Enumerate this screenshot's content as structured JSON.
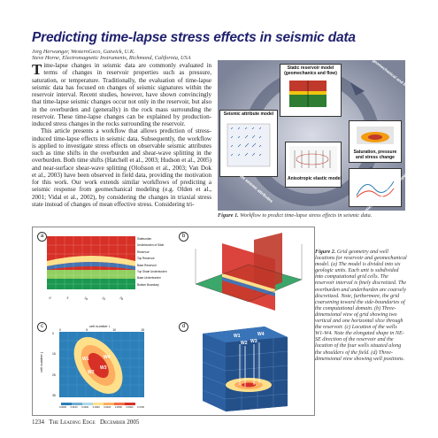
{
  "title": "Predicting time-lapse stress effects in seismic data",
  "authors": [
    {
      "line": "Jorg Herwanger, WesternGeco, Gatwick, U.K."
    },
    {
      "line": "Steve Horne, Electromagnetic Instruments, Richmond, California, USA"
    }
  ],
  "body": {
    "dropcap": "T",
    "para1": "ime-lapse changes in seismic data are commonly evaluated in terms of changes in reservoir properties such as pressure, saturation, or temperature. Traditionally, the evaluation of time-lapse seismic data has focused on changes of seismic signatures within the reservoir interval. Recent studies, however, have shown convincingly that time-lapse seismic changes occur not only in the reservoir, but also in the overburden and (generally) in the rock mass surrounding the reservoir. These time-lapse changes can be explained by production-induced stress changes in the rocks surrounding the reservoir.",
    "para2": "This article presents a workflow that allows prediction of stress-induced time-lapse effects in seismic data. Subsequently, the workflow is applied to investigate stress effects on observable seismic attributes such as time shifts in the overburden and shear-wave splitting in the overburden. Both time shifts (Hatchell et al., 2003; Hudson et al., 2005) and near-surface shear-wave splitting (Olofsson et al., 2003; Van Dok et al., 2003) have been observed in field data, providing the motivation for this work. Our work extends similar workflows of predicting a seismic response from geomechanical modeling (e.g. Olden et al., 2001; Vidal et al., 2002), by considering the changes in triaxial stress state instead of changes of mean effective stress. Considering tri-"
  },
  "figure1": {
    "boxes": {
      "static": "Static reservoir model (geomechanics and flow)",
      "saturation": "Saturation, pressure and stress change",
      "attribute": "Seismic attribute model",
      "anisotropic": "Anisotropic elastic model"
    },
    "arrows": {
      "coupled": "Coupled geomechanical and flow modeling",
      "rock_physics": "Rock physics modeling (stress-dependence)",
      "calculate": "Calculate seismic attributes"
    },
    "caption_label": "Figure 1.",
    "caption_text": "Workflow to predict time-lapse stress effects in seismic data."
  },
  "figure2": {
    "panel_labels": [
      "a",
      "b",
      "c",
      "d"
    ],
    "panel_a_layers": [
      "Sideburden",
      "Underburden of Slide",
      "Reservoir",
      "Top Reservoir",
      "Base Reservoir",
      "Top Shale Underburden",
      "Base Underburden",
      "Bottom Boundary"
    ],
    "panel_c": {
      "xlabel": "cell number i",
      "ylabel": "cell number j",
      "wells": [
        "W1",
        "W2",
        "W3",
        "W4"
      ],
      "xticks": [
        "0",
        "5",
        "10",
        "15"
      ],
      "yticks": [
        "0",
        "15",
        "25",
        "35"
      ],
      "colorbar": [
        "0.0000",
        "0.0100",
        "0.0200",
        "0.0300",
        "0.0400",
        "0.0500",
        "0.0600",
        "0.0700"
      ]
    },
    "panel_d": {
      "wells": [
        "W1",
        "W2",
        "W3",
        "W4"
      ]
    },
    "caption_label": "Figure 2.",
    "caption_text": "Grid geometry and well locations for reservoir and geomechanical model. (a) The model is divided into six geologic units. Each unit is subdivided into computational grid cells. The reservoir interval is finely discretized. The overburden and underburden are coarsely discretized. Note, furthermore, the grid coarsening toward the side-boundaries of the computational domain. (b) Three-dimensional view of grid showing two vertical and one horizontal slice through the reservoir. (c) Location of the wells W1-W4. Note the elongated shape in NE-SE direction of the reservoir and the location of the four wells situated along the shoulders of the field. (d) Three-dimensional view showing well positions."
  },
  "footer": {
    "page": "1234",
    "journal": "The Leading Edge",
    "date": "December 2005"
  }
}
